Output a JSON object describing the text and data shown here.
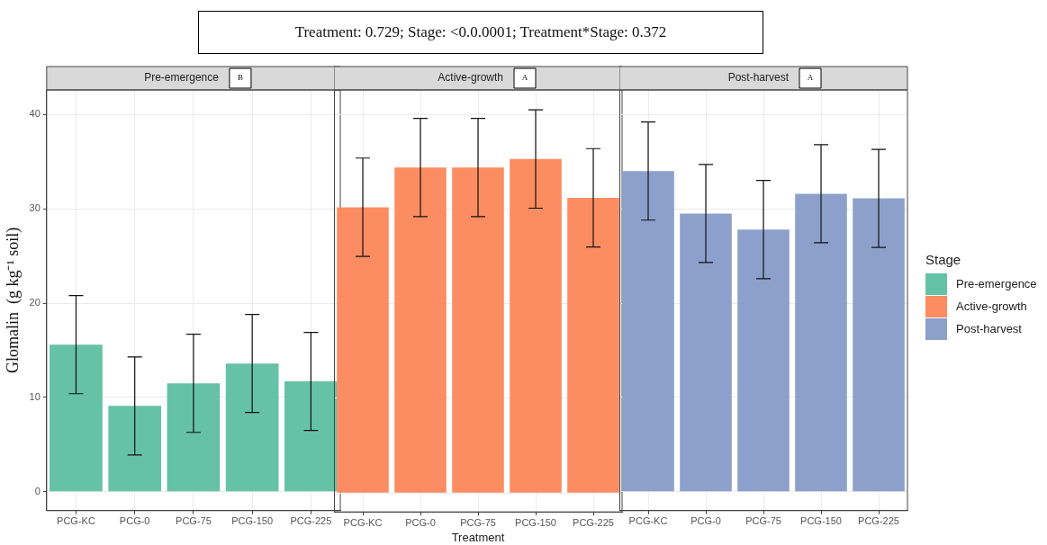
{
  "chart_data": [
    {
      "type": "bar",
      "title": "Pre-emergence",
      "ylabel": "Glomalin  (g kg⁻¹ soil)",
      "annotations": [
        "B",
        "Treatment: 0.729; Stage: <0.0.0001; Treatment*Stage: 0.372"
      ],
      "categories": [
        "PCG-KC",
        "PCG-0",
        "PCG-75",
        "PCG-150",
        "PCG-225"
      ],
      "series": [
        {
          "name": "Pre-emergence",
          "color": "#66c2a5",
          "values": [
            15.6,
            9.1,
            11.5,
            13.6,
            11.7
          ],
          "errors": [
            5.2,
            5.2,
            5.2,
            5.2,
            5.2
          ]
        }
      ],
      "ylim": [
        -2,
        42.6
      ],
      "yticks": [
        0,
        10,
        20,
        30,
        40
      ],
      "grid": true
    },
    {
      "type": "bar",
      "title": "Active-growth",
      "xlabel": "Treatment",
      "annotations": [
        "A"
      ],
      "categories": [
        "PCG-KC",
        "PCG-0",
        "PCG-75",
        "PCG-150",
        "PCG-225"
      ],
      "series": [
        {
          "name": "Active-growth",
          "color": "#fc8d62",
          "values": [
            30.2,
            34.4,
            34.4,
            35.3,
            31.2
          ],
          "errors": [
            5.2,
            5.2,
            5.2,
            5.2,
            5.2
          ]
        }
      ],
      "ylim": [
        -2,
        42.6
      ],
      "yticks": [
        0,
        10,
        20,
        30,
        40
      ],
      "grid": true,
      "tick_labels": "x"
    },
    {
      "type": "bar",
      "title": "Post-harvest",
      "annotations": [
        "A"
      ],
      "categories": [
        "PCG-KC",
        "PCG-0",
        "PCG-75",
        "PCG-150",
        "PCG-225"
      ],
      "series": [
        {
          "name": "Post-harvest",
          "color": "#8da0cb",
          "values": [
            34.0,
            29.5,
            27.8,
            31.6,
            31.1
          ],
          "errors": [
            5.2,
            5.2,
            5.2,
            5.2,
            5.2
          ]
        }
      ],
      "ylim": [
        -2,
        42.6
      ],
      "yticks": [
        0,
        10,
        20,
        30,
        40
      ],
      "grid": true,
      "tick_labels": "x",
      "legend": "right",
      "legend_title": "Stage"
    }
  ]
}
